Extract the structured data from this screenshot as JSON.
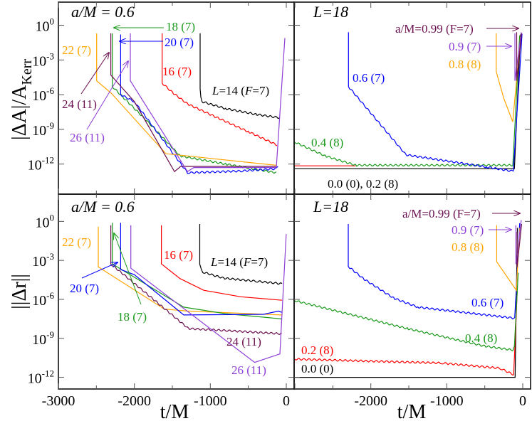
{
  "colors": {
    "black": "#000000",
    "red": "#ff0000",
    "green": "#1a9a1a",
    "blue": "#0000ff",
    "orange": "#ffa500",
    "maroon": "#6b0f4f",
    "purple": "#8e3fd6"
  },
  "chart_data": [
    {
      "type": "line",
      "panel": "top-left",
      "title": "a/M = 0.6",
      "ylabel": "|ΔA|/A_Kerr",
      "ylabel_main": "|ΔA|/A",
      "ylabel_sub": "Kerr",
      "xlim": [
        -3000,
        100
      ],
      "y_scale": "log",
      "ylim_log10": [
        -14.6,
        2.0
      ],
      "yticks_exp": [
        "0",
        "-3",
        "-6",
        "-9",
        "-12"
      ],
      "series": [
        {
          "name": "L=14 (F=7)",
          "color": "black",
          "oscillating": true,
          "points": [
            [
              -1134,
              -0.7
            ],
            [
              -1134,
              -5.5
            ],
            [
              -1125,
              -6.2
            ],
            [
              -1110,
              -6.6
            ],
            [
              -800,
              -7.2
            ],
            [
              -400,
              -7.7
            ],
            [
              -84,
              -8.0
            ]
          ]
        },
        {
          "name": "16 (7)",
          "color": "red",
          "oscillating": true,
          "points": [
            [
              -1634,
              -0.7
            ],
            [
              -1634,
              -5.0
            ],
            [
              -1500,
              -5.8
            ],
            [
              -1300,
              -6.8
            ],
            [
              -956,
              -7.85
            ],
            [
              -500,
              -9.2
            ],
            [
              -122,
              -10.35
            ]
          ]
        },
        {
          "name": "18 (7)",
          "color": "green",
          "oscillating": true,
          "points": [
            [
              -2290,
              -0.7
            ],
            [
              -2290,
              -5.3
            ],
            [
              -1800,
              -8.5
            ],
            [
              -1397,
              -11.3
            ],
            [
              -800,
              -12.0
            ],
            [
              -131,
              -12.75
            ]
          ]
        },
        {
          "name": "20 (7)",
          "color": "blue",
          "oscillating": true,
          "points": [
            [
              -2181,
              -0.8
            ],
            [
              -2181,
              -6.0
            ],
            [
              -2000,
              -6.6
            ],
            [
              -1300,
              -12.75
            ],
            [
              -600,
              -12.6
            ],
            [
              -131,
              -12.4
            ],
            [
              -110,
              -12.2
            ]
          ]
        },
        {
          "name": "22 (7)",
          "color": "orange",
          "oscillating": false,
          "points": [
            [
              -2497,
              -0.7
            ],
            [
              -2497,
              -4.8
            ],
            [
              -2300,
              -5.9
            ],
            [
              -1584,
              -11.1
            ],
            [
              -366,
              -11.95
            ],
            [
              -131,
              -12.1
            ]
          ]
        },
        {
          "name": "24 (11)",
          "color": "maroon",
          "oscillating": false,
          "points": [
            [
              -2310,
              -0.7
            ],
            [
              -2310,
              -4.3
            ],
            [
              -2000,
              -6.6
            ],
            [
              -1472,
              -12.65
            ],
            [
              -1390,
              -12.2
            ],
            [
              -131,
              -12.2
            ]
          ]
        },
        {
          "name": "26 (11)",
          "color": "purple",
          "oscillating": false,
          "points": [
            [
              -2053,
              -0.7
            ],
            [
              -2053,
              -4.8
            ],
            [
              -1300,
              -12.65
            ],
            [
              -1218,
              -12.3
            ],
            [
              -131,
              -12.3
            ],
            [
              -19,
              -1.1
            ]
          ]
        }
      ],
      "labels": {
        "l14_prefix": "L",
        "l14_mid": "=14 (",
        "l14_F": "F",
        "l14_suffix": "=7)",
        "l16": "16 (7)",
        "l18": "18 (7)",
        "l20": "20 (7)",
        "l22": "22 (7)",
        "l24": "24 (11)",
        "l26": "26 (11)"
      }
    },
    {
      "type": "line",
      "panel": "top-right",
      "title": "L=18",
      "xlim": [
        -3000,
        100
      ],
      "y_scale": "log",
      "ylim_log10": [
        -14.6,
        2.0
      ],
      "series": [
        {
          "name": "0.0 (0)",
          "color": "black",
          "oscillating": false,
          "points": [
            [
              -3000,
              -12.4
            ],
            [
              -110,
              -12.4
            ],
            [
              -30,
              -0.8
            ]
          ]
        },
        {
          "name": "0.2 (8)",
          "color": "red",
          "oscillating": false,
          "points": [
            [
              -3000,
              -12.15
            ],
            [
              -2200,
              -12.15
            ]
          ]
        },
        {
          "name": "0.4 (8)",
          "color": "green",
          "oscillating": true,
          "points": [
            [
              -3000,
              -10.1
            ],
            [
              -2600,
              -11.3
            ],
            [
              -2200,
              -12.1
            ],
            [
              -131,
              -12.1
            ],
            [
              -40,
              -0.8
            ]
          ]
        },
        {
          "name": "0.6 (7)",
          "color": "blue",
          "oscillating": true,
          "points": [
            [
              -2294,
              -0.6
            ],
            [
              -2294,
              -5.3
            ],
            [
              -1537,
              -11.2
            ],
            [
              -478,
              -12.25
            ],
            [
              -150,
              -12.6
            ],
            [
              -125,
              -12.6
            ],
            [
              -9,
              -0.8
            ]
          ]
        },
        {
          "name": "0.8 (8)",
          "color": "orange",
          "oscillating": false,
          "points": [
            [
              -350,
              -0.7
            ],
            [
              -350,
              -4.0
            ],
            [
              -250,
              -6.3
            ],
            [
              -131,
              -8.35
            ],
            [
              -30,
              -1.0
            ]
          ]
        },
        {
          "name": "0.9 (7)",
          "color": "purple",
          "oscillating": false,
          "points": [
            [
              -103,
              -0.7
            ],
            [
              -103,
              -4.8
            ],
            [
              -20,
              -0.6
            ]
          ]
        },
        {
          "name": "a/M=0.99 (F=7)",
          "color": "maroon",
          "oscillating": false,
          "points": [
            [
              -80,
              -0.6
            ],
            [
              -80,
              -4.8
            ],
            [
              -15,
              -0.7
            ]
          ]
        }
      ],
      "labels": {
        "l099": "a/M=0.99 (F=7)",
        "l09": "0.9 (7)",
        "l08": "0.8 (8)",
        "l06": "0.6 (7)",
        "l04": "0.4 (8)",
        "l00_02": "0.0 (0), 0.2 (8)"
      }
    },
    {
      "type": "line",
      "panel": "bottom-left",
      "title": "a/M = 0.6",
      "ylabel": "||Δr||",
      "xlabel": "t/M",
      "xlim": [
        -3000,
        100
      ],
      "xticks": [
        "-3000",
        "-2000",
        "-1000",
        "0"
      ],
      "y_scale": "log",
      "ylim_log10": [
        -12.9,
        2.1
      ],
      "yticks_exp": [
        "0",
        "-3",
        "-6",
        "-9",
        "-12"
      ],
      "series": [
        {
          "name": "L=14 (F=7)",
          "color": "black",
          "oscillating": true,
          "points": [
            [
              -1139,
              -0.2
            ],
            [
              -1139,
              -3.3
            ],
            [
              -1100,
              -3.9
            ],
            [
              -824,
              -4.37
            ],
            [
              -400,
              -4.6
            ],
            [
              -56,
              -4.8
            ]
          ]
        },
        {
          "name": "16 (7)",
          "color": "red",
          "oscillating": false,
          "points": [
            [
              -1644,
              -0.3
            ],
            [
              -1644,
              -3.27
            ],
            [
              -1400,
              -4.4
            ],
            [
              -1087,
              -5.3
            ],
            [
              -600,
              -5.8
            ],
            [
              -56,
              -6.07
            ]
          ]
        },
        {
          "name": "22 (7)",
          "color": "orange",
          "oscillating": false,
          "points": [
            [
              -2475,
              -0.4
            ],
            [
              -2475,
              -3.5
            ],
            [
              -1603,
              -6.75
            ],
            [
              -1300,
              -6.9
            ],
            [
              -60,
              -7.2
            ]
          ]
        },
        {
          "name": "18 (7)",
          "color": "green",
          "oscillating": false,
          "points": [
            [
              -2290,
              -0.1
            ],
            [
              -2290,
              -3.27
            ],
            [
              -1350,
              -6.6
            ],
            [
              -800,
              -7.1
            ],
            [
              -60,
              -7.5
            ]
          ]
        },
        {
          "name": "20 (7)",
          "color": "blue",
          "oscillating": false,
          "points": [
            [
              -2181,
              -0.1
            ],
            [
              -2181,
              -3.7
            ],
            [
              -2000,
              -4.1
            ],
            [
              -1350,
              -7.2
            ],
            [
              -300,
              -7.15
            ],
            [
              -100,
              -6.9
            ],
            [
              -60,
              -7.0
            ]
          ]
        },
        {
          "name": "24 (11)",
          "color": "maroon",
          "oscillating": true,
          "points": [
            [
              -2310,
              -0.3
            ],
            [
              -2310,
              -3.27
            ],
            [
              -1287,
              -8.25
            ],
            [
              -800,
              -8.4
            ],
            [
              -60,
              -8.65
            ]
          ]
        },
        {
          "name": "26 (11)",
          "color": "purple",
          "oscillating": false,
          "points": [
            [
              -2047,
              -0.3
            ],
            [
              -2047,
              -3.6
            ],
            [
              -417,
              -10.85
            ],
            [
              -84,
              -10.2
            ],
            [
              -1,
              -0.97
            ]
          ]
        }
      ],
      "labels": {
        "l16": "16 (7)",
        "l18": "18 (7)",
        "l20": "20 (7)",
        "l22": "22 (7)",
        "l24": "24 (11)",
        "l26": "26 (11)"
      }
    },
    {
      "type": "line",
      "panel": "bottom-right",
      "title": "L=18",
      "xlabel": "t/M",
      "xlim": [
        -3000,
        100
      ],
      "xticks": [
        "-2000",
        "-1000",
        "0"
      ],
      "y_scale": "log",
      "ylim_log10": [
        -12.9,
        2.1
      ],
      "series": [
        {
          "name": "0.0 (0)",
          "color": "black",
          "oscillating": false,
          "points": [
            [
              -3000,
              -12.0
            ],
            [
              -100,
              -12.0
            ],
            [
              -70,
              -0.5
            ]
          ]
        },
        {
          "name": "0.2 (8)",
          "color": "red",
          "oscillating": true,
          "points": [
            [
              -3000,
              -10.6
            ],
            [
              -1069,
              -10.9
            ],
            [
              -300,
              -11.3
            ],
            [
              -120,
              -11.8
            ],
            [
              -70,
              -5
            ]
          ]
        },
        {
          "name": "0.4 (8)",
          "color": "green",
          "oscillating": true,
          "points": [
            [
              -3000,
              -6.1
            ],
            [
              -1519,
              -8.25
            ],
            [
              -500,
              -9.6
            ],
            [
              -131,
              -9.9
            ],
            [
              -110,
              -9.6
            ],
            [
              -60,
              -4
            ]
          ]
        },
        {
          "name": "0.6 (7)",
          "color": "blue",
          "oscillating": true,
          "points": [
            [
              -2297,
              -0.2
            ],
            [
              -2297,
              -3.46
            ],
            [
              -2100,
              -4.4
            ],
            [
              -1700,
              -5.9
            ],
            [
              -1381,
              -6.6
            ],
            [
              -106,
              -7.45
            ],
            [
              -40,
              -0.2
            ]
          ]
        },
        {
          "name": "0.8 (8)",
          "color": "orange",
          "oscillating": false,
          "points": [
            [
              -343,
              -0.3
            ],
            [
              -343,
              -3.1
            ],
            [
              -84,
              -5.3
            ],
            [
              -40,
              -0.5
            ]
          ]
        },
        {
          "name": "0.9 (7)",
          "color": "purple",
          "oscillating": false,
          "points": [
            [
              -90,
              -0.3
            ],
            [
              -90,
              -3.3
            ],
            [
              -20,
              0.1
            ]
          ]
        },
        {
          "name": "a/M=0.99 (F=7)",
          "color": "maroon",
          "oscillating": false,
          "points": [
            [
              -75,
              -0.8
            ],
            [
              -75,
              -3.55
            ],
            [
              -15,
              -0.2
            ]
          ]
        }
      ],
      "labels": {
        "l099": "a/M=0.99 (F=7)",
        "l09": "0.9 (7)",
        "l08": "0.8 (8)",
        "l06": "0.6 (7)",
        "l04": "0.4 (8)",
        "l02": "0.2 (8)",
        "l00": "0.0 (0)"
      }
    }
  ]
}
